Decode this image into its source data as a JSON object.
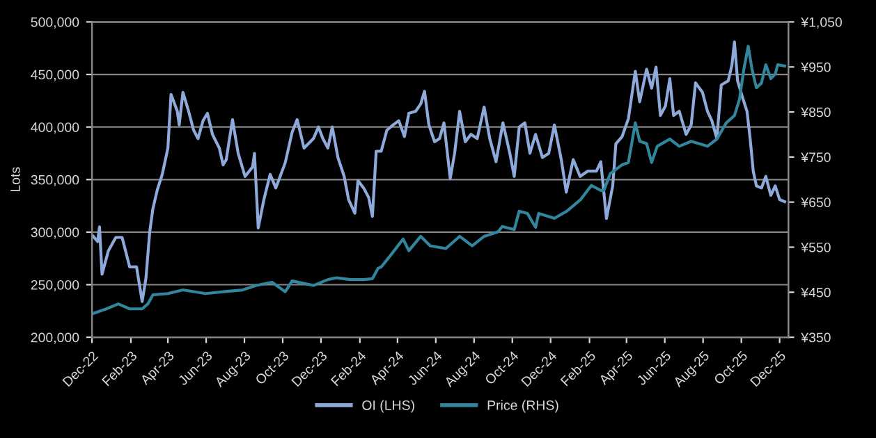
{
  "chart_data": {
    "type": "line",
    "ylabel": "Lots",
    "legend": "bottom",
    "grid": "y",
    "line_style": "solid",
    "marker": "none",
    "xlim": [
      "2022-12-01",
      "2025-12-15"
    ],
    "xticks": [
      {
        "value": "2022-12-01",
        "label": "Dec-22"
      },
      {
        "value": "2023-02-01",
        "label": "Feb-23"
      },
      {
        "value": "2023-04-01",
        "label": "Apr-23"
      },
      {
        "value": "2023-06-01",
        "label": "Jun-23"
      },
      {
        "value": "2023-08-01",
        "label": "Aug-23"
      },
      {
        "value": "2023-10-01",
        "label": "Oct-23"
      },
      {
        "value": "2023-12-01",
        "label": "Dec-23"
      },
      {
        "value": "2024-02-01",
        "label": "Feb-24"
      },
      {
        "value": "2024-04-01",
        "label": "Apr-24"
      },
      {
        "value": "2024-06-01",
        "label": "Jun-24"
      },
      {
        "value": "2024-08-01",
        "label": "Aug-24"
      },
      {
        "value": "2024-10-01",
        "label": "Oct-24"
      },
      {
        "value": "2024-12-01",
        "label": "Dec-24"
      },
      {
        "value": "2025-02-01",
        "label": "Feb-25"
      },
      {
        "value": "2025-04-01",
        "label": "Apr-25"
      },
      {
        "value": "2025-06-01",
        "label": "Jun-25"
      },
      {
        "value": "2025-08-01",
        "label": "Aug-25"
      },
      {
        "value": "2025-10-01",
        "label": "Oct-25"
      },
      {
        "value": "2025-12-01",
        "label": "Dec-25"
      }
    ],
    "ylim": [
      200000,
      500000
    ],
    "yticks": [
      {
        "value": 200000,
        "label": "200,000"
      },
      {
        "value": 250000,
        "label": "250,000"
      },
      {
        "value": 300000,
        "label": "300,000"
      },
      {
        "value": 350000,
        "label": "350,000"
      },
      {
        "value": 400000,
        "label": "400,000"
      },
      {
        "value": 450000,
        "label": "450,000"
      },
      {
        "value": 500000,
        "label": "500,000"
      }
    ],
    "y2lim": [
      350,
      1050
    ],
    "y2ticks": [
      {
        "value": 350,
        "label": "¥350"
      },
      {
        "value": 450,
        "label": "¥450"
      },
      {
        "value": 550,
        "label": "¥550"
      },
      {
        "value": 650,
        "label": "¥650"
      },
      {
        "value": 750,
        "label": "¥750"
      },
      {
        "value": 850,
        "label": "¥850"
      },
      {
        "value": 950,
        "label": "¥950"
      },
      {
        "value": 1050,
        "label": "¥1,050"
      }
    ],
    "series": [
      {
        "name": "OI (LHS)",
        "color": "#8eaadb",
        "x": [
          "2022-12-03",
          "2022-12-10",
          "2022-12-13",
          "2022-12-17",
          "2022-12-27",
          "2023-01-08",
          "2023-01-18",
          "2023-01-30",
          "2023-02-10",
          "2023-02-19",
          "2023-02-25",
          "2023-03-03",
          "2023-03-08",
          "2023-03-15",
          "2023-03-23",
          "2023-04-01",
          "2023-04-06",
          "2023-04-16",
          "2023-04-19",
          "2023-04-25",
          "2023-05-04",
          "2023-05-12",
          "2023-05-19",
          "2023-05-27",
          "2023-06-03",
          "2023-06-11",
          "2023-06-22",
          "2023-06-28",
          "2023-07-03",
          "2023-07-13",
          "2023-07-22",
          "2023-08-02",
          "2023-08-14",
          "2023-08-17",
          "2023-08-23",
          "2023-09-01",
          "2023-09-11",
          "2023-09-20",
          "2023-10-05",
          "2023-10-16",
          "2023-10-24",
          "2023-11-04",
          "2023-11-19",
          "2023-11-27",
          "2023-12-04",
          "2023-12-12",
          "2023-12-19",
          "2023-12-28",
          "2024-01-07",
          "2024-01-14",
          "2024-01-24",
          "2024-01-29",
          "2024-02-07",
          "2024-02-15",
          "2024-02-21",
          "2024-02-27",
          "2024-03-06",
          "2024-03-15",
          "2024-03-25",
          "2024-04-03",
          "2024-04-12",
          "2024-04-19",
          "2024-04-30",
          "2024-05-08",
          "2024-05-14",
          "2024-05-21",
          "2024-05-30",
          "2024-06-07",
          "2024-06-14",
          "2024-06-24",
          "2024-07-01",
          "2024-07-09",
          "2024-07-18",
          "2024-07-27",
          "2024-08-06",
          "2024-08-17",
          "2024-08-26",
          "2024-09-05",
          "2024-09-16",
          "2024-09-27",
          "2024-10-04",
          "2024-10-12",
          "2024-10-21",
          "2024-10-29",
          "2024-11-07",
          "2024-11-18",
          "2024-11-28",
          "2024-12-07",
          "2024-12-18",
          "2024-12-26",
          "2025-01-06",
          "2025-01-17",
          "2025-01-29",
          "2025-02-12",
          "2025-02-19",
          "2025-02-28",
          "2025-03-10",
          "2025-03-15",
          "2025-03-25",
          "2025-04-04",
          "2025-04-15",
          "2025-04-22",
          "2025-05-03",
          "2025-05-11",
          "2025-05-18",
          "2025-05-25",
          "2025-06-02",
          "2025-06-09",
          "2025-06-15",
          "2025-06-24",
          "2025-07-05",
          "2025-07-13",
          "2025-07-20",
          "2025-07-31",
          "2025-08-08",
          "2025-08-15",
          "2025-08-23",
          "2025-08-30",
          "2025-09-10",
          "2025-09-16",
          "2025-09-20",
          "2025-09-25",
          "2025-10-03",
          "2025-10-10",
          "2025-10-15",
          "2025-10-20",
          "2025-10-25",
          "2025-11-02",
          "2025-11-09",
          "2025-11-17",
          "2025-11-24",
          "2025-12-01",
          "2025-12-09"
        ],
        "values": [
          296000,
          291000,
          305000,
          260000,
          282000,
          295000,
          295000,
          267000,
          267000,
          234000,
          256000,
          300000,
          322000,
          340000,
          355000,
          380000,
          431000,
          415000,
          402000,
          433000,
          415000,
          397000,
          389000,
          406000,
          413000,
          393000,
          380000,
          364000,
          369000,
          407000,
          375000,
          353000,
          362000,
          375000,
          304000,
          331000,
          355000,
          342000,
          366000,
          395000,
          407000,
          380000,
          389000,
          400000,
          389000,
          380000,
          400000,
          371000,
          353000,
          331000,
          318000,
          349000,
          342000,
          333000,
          315000,
          377000,
          377000,
          397000,
          402000,
          406000,
          391000,
          413000,
          415000,
          422000,
          434000,
          402000,
          386000,
          389000,
          404000,
          351000,
          375000,
          415000,
          386000,
          393000,
          389000,
          419000,
          389000,
          367000,
          404000,
          375000,
          353000,
          400000,
          404000,
          375000,
          393000,
          371000,
          375000,
          402000,
          369000,
          338000,
          369000,
          353000,
          358000,
          358000,
          367000,
          313000,
          344000,
          384000,
          391000,
          408000,
          453000,
          424000,
          455000,
          437000,
          457000,
          411000,
          420000,
          446000,
          411000,
          415000,
          393000,
          402000,
          442000,
          433000,
          415000,
          406000,
          389000,
          440000,
          444000,
          459000,
          481000,
          444000,
          428000,
          415000,
          389000,
          358000,
          344000,
          342000,
          353000,
          335000,
          344000,
          331000,
          329000
        ]
      },
      {
        "name": "Price (RHS)",
        "color": "#31859c",
        "axis": "y2",
        "x": [
          "2022-12-03",
          "2022-12-24",
          "2023-01-12",
          "2023-01-30",
          "2023-02-19",
          "2023-02-28",
          "2023-03-08",
          "2023-04-01",
          "2023-04-25",
          "2023-05-31",
          "2023-06-28",
          "2023-07-29",
          "2023-08-20",
          "2023-09-14",
          "2023-10-05",
          "2023-10-16",
          "2023-11-19",
          "2023-12-12",
          "2023-12-26",
          "2024-01-17",
          "2024-02-07",
          "2024-02-21",
          "2024-03-01",
          "2024-03-06",
          "2024-03-21",
          "2024-04-10",
          "2024-04-19",
          "2024-05-08",
          "2024-05-23",
          "2024-06-17",
          "2024-07-09",
          "2024-07-29",
          "2024-08-17",
          "2024-09-08",
          "2024-09-15",
          "2024-10-04",
          "2024-10-12",
          "2024-10-25",
          "2024-11-07",
          "2024-11-12",
          "2024-12-07",
          "2024-12-27",
          "2025-01-18",
          "2025-02-04",
          "2025-02-19",
          "2025-02-24",
          "2025-03-06",
          "2025-03-25",
          "2025-04-04",
          "2025-04-15",
          "2025-04-22",
          "2025-05-03",
          "2025-05-11",
          "2025-05-20",
          "2025-06-09",
          "2025-06-24",
          "2025-07-13",
          "2025-08-08",
          "2025-08-23",
          "2025-09-07",
          "2025-09-20",
          "2025-09-28",
          "2025-10-05",
          "2025-10-12",
          "2025-10-18",
          "2025-10-25",
          "2025-11-02",
          "2025-11-09",
          "2025-11-17",
          "2025-11-24",
          "2025-11-28",
          "2025-12-09"
        ],
        "values": [
          403,
          413,
          424,
          413,
          413,
          424,
          444,
          447,
          455,
          447,
          451,
          455,
          465,
          472,
          451,
          475,
          465,
          478,
          482,
          478,
          478,
          480,
          503,
          506,
          532,
          568,
          542,
          574,
          553,
          547,
          574,
          553,
          574,
          584,
          596,
          589,
          630,
          625,
          594,
          625,
          614,
          630,
          656,
          687,
          676,
          676,
          713,
          733,
          738,
          826,
          785,
          780,
          738,
          774,
          790,
          774,
          785,
          774,
          790,
          826,
          842,
          878,
          945,
          996,
          945,
          904,
          914,
          955,
          924,
          934,
          955,
          952
        ]
      }
    ]
  }
}
